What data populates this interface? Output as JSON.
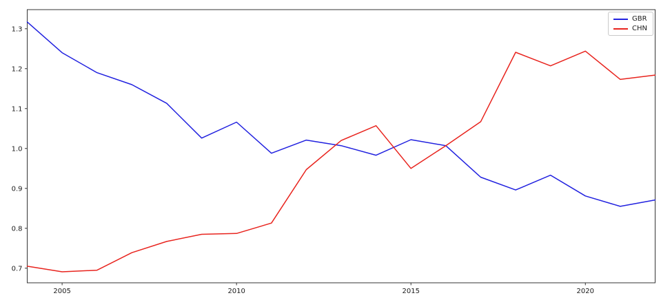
{
  "chart_data": {
    "type": "line",
    "title": "",
    "xlabel": "",
    "ylabel": "",
    "x": [
      2004,
      2005,
      2006,
      2007,
      2008,
      2009,
      2010,
      2011,
      2012,
      2013,
      2014,
      2015,
      2016,
      2017,
      2018,
      2019,
      2020,
      2021,
      2022
    ],
    "series": [
      {
        "name": "GBR",
        "color": "#2020df",
        "values": [
          1.317,
          1.24,
          1.19,
          1.16,
          1.113,
          1.026,
          1.066,
          0.988,
          1.021,
          1.007,
          0.983,
          1.022,
          1.007,
          0.928,
          0.896,
          0.933,
          0.881,
          0.855,
          0.871
        ]
      },
      {
        "name": "CHN",
        "color": "#e8231d",
        "values": [
          0.705,
          0.691,
          0.695,
          0.739,
          0.767,
          0.785,
          0.787,
          0.813,
          0.947,
          1.02,
          1.057,
          0.95,
          1.007,
          1.067,
          1.241,
          1.207,
          1.244,
          1.173,
          1.184
        ]
      }
    ],
    "xticks": [
      2005,
      2010,
      2015,
      2020
    ],
    "yticks": [
      0.7,
      0.8,
      0.9,
      1.0,
      1.1,
      1.2,
      1.3
    ],
    "xlim": [
      2004,
      2022
    ],
    "ylim": [
      0.6634,
      1.3479
    ],
    "grid": false,
    "legend_position": "upper right",
    "axis_color": "#333333",
    "tick_label_color": "#1a1a1a"
  }
}
